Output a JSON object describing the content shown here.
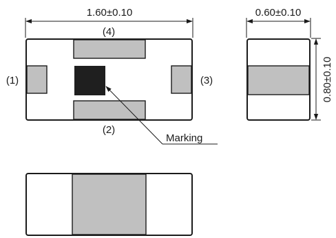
{
  "dimensions": {
    "length": "1.60±0.10",
    "width": "0.60±0.10",
    "height": "0.80±0.10"
  },
  "terminals": {
    "t1": "(1)",
    "t2": "(2)",
    "t3": "(3)",
    "t4": "(4)"
  },
  "marking_label": "Marking",
  "colors": {
    "outline": "#1a1a1a",
    "electrode": "#c0c0c0",
    "marking": "#1f1f1f",
    "body": "#ffffff"
  }
}
